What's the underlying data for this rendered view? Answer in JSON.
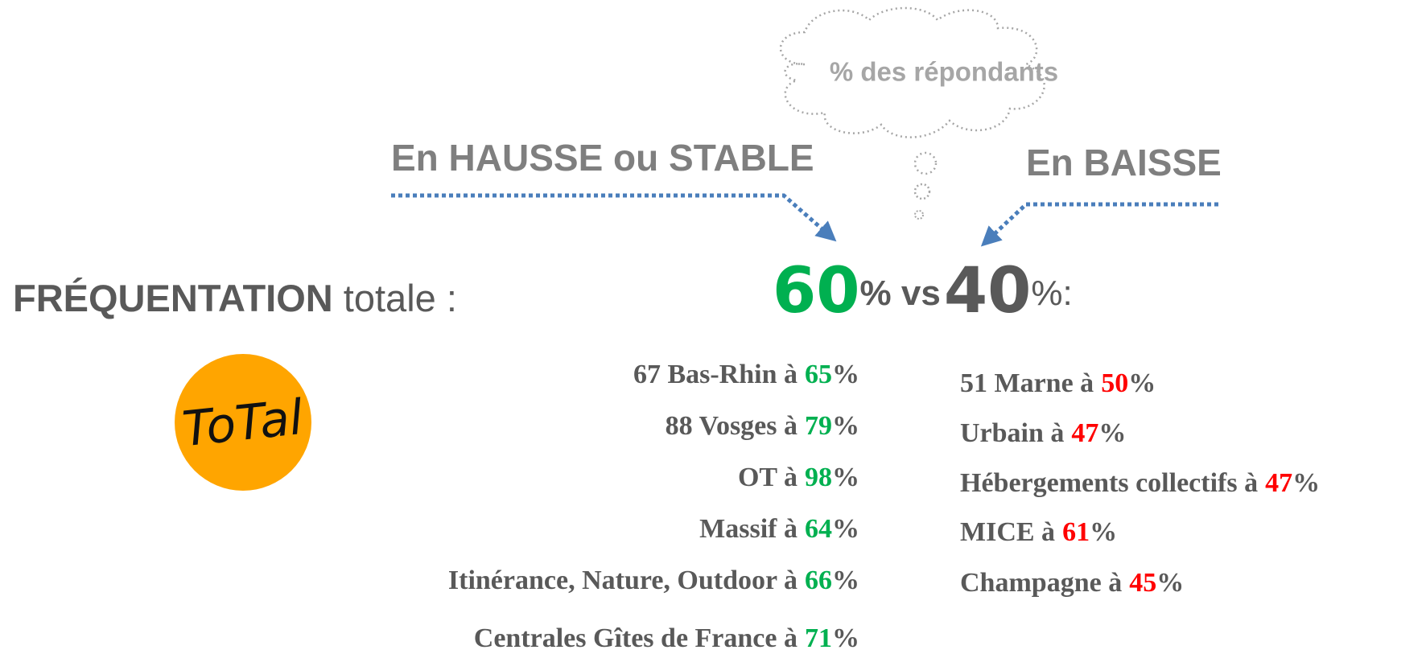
{
  "cloud": "% des répondants",
  "left_header": "En HAUSSE ou STABLE",
  "right_header": "En BAISSE",
  "title": {
    "bold": "FRÉQUENTATION",
    "rest": "totale :"
  },
  "headline": {
    "high": 60,
    "mid": "% vs",
    "low": 40,
    "end": "%:"
  },
  "logo": "ToTal",
  "left_items": [
    {
      "text": "67 Bas-Rhin à",
      "value": 65,
      "unit": "%"
    },
    {
      "text": "88 Vosges à",
      "value": 79,
      "unit": "%"
    },
    {
      "text": "OT à",
      "value": 98,
      "unit": "%"
    },
    {
      "text": "Massif à",
      "value": 64,
      "unit": "%"
    },
    {
      "text": "Itinérance, Nature, Outdoor à",
      "value": 66,
      "unit": "%"
    },
    {
      "text": "Centrales Gîtes de France à",
      "value": 71,
      "unit": "%"
    }
  ],
  "right_items": [
    {
      "text": "51 Marne à",
      "value": 50,
      "unit": "%"
    },
    {
      "text": "Urbain à",
      "value": 47,
      "unit": "%"
    },
    {
      "text": "Hébergements collectifs à",
      "value": 47,
      "unit": "%"
    },
    {
      "text": "MICE à",
      "value": 61,
      "unit": "%"
    },
    {
      "text": "Champagne à",
      "value": 45,
      "unit": "%"
    }
  ]
}
